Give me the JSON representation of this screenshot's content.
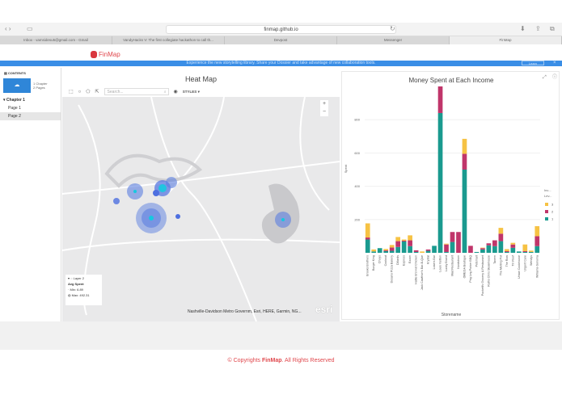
{
  "browser": {
    "url": "finmap.github.io",
    "tabs": [
      {
        "label": "Inbox - vamsidesu5@gmail.com - Gmail",
        "active": false
      },
      {
        "label": "VandyHacks V: The first collegiate hackathon to call th...",
        "active": false
      },
      {
        "label": "Devpost",
        "active": false
      },
      {
        "label": "Messenger",
        "active": false
      },
      {
        "label": "FinMap",
        "active": true
      }
    ]
  },
  "brand": {
    "name": "FinMap",
    "color": "#e0474c"
  },
  "banner": {
    "text": "Experience the new storytelling library. Share your Dossier and take advantage of new collaboration tools.",
    "button": "Learn"
  },
  "sidebar": {
    "header": "CONTENTS",
    "meta_chapters": "1 Chapter",
    "meta_pages": "2 Pages",
    "chapter": "Chapter 1",
    "pages": [
      {
        "label": "Page 1",
        "selected": false
      },
      {
        "label": "Page 2",
        "selected": true
      }
    ]
  },
  "map": {
    "title": "Heat Map",
    "search_placeholder": "Search...",
    "styles_label": "STYLES",
    "attribution": "Nashville-Davidson Metro Governm, Esri, HERE, Garmin, NG...",
    "esri": "esri",
    "legend": {
      "layer": "Layer 2",
      "field": "Avg Spent",
      "min": "Min: 6.89",
      "max": "Max: 492.31"
    }
  },
  "chart_data": {
    "type": "bar",
    "stacked": true,
    "title": "Money Spent at Each Income",
    "xlabel": "Storename",
    "ylabel": "Spent",
    "ylim": [
      0,
      1000
    ],
    "yticks": [
      200,
      400,
      600,
      800
    ],
    "grid": true,
    "legend": {
      "title_line1": "Inc...",
      "title_line2": "Lev...",
      "placement": "right"
    },
    "categories": [
      "Brooks Brothers",
      "Burger King",
      "Chuys",
      "Cookout",
      "Desano Pizza Bakery",
      "Dillards",
      "Express",
      "Exxon",
      "Hattie B's Hot Chicken",
      "Jack Cawthon's Bar-B-Que",
      "Krystal",
      "Losers Bar",
      "Louis Vuitton",
      "Lucky Brand",
      "Mad Restaurant",
      "Nordstrom",
      "OMEGA Boutique",
      "Peg Leg Porker BBQ",
      "Petsmart",
      "Puckett's Grocery & Restaurant",
      "Ruths Chris Steakhouse",
      "Tavern",
      "The Melting Pot",
      "The Row",
      "Tin Roof",
      "Urban Cookhouse",
      "Urgent Care",
      "Wendys",
      "Williams-Sonoma"
    ],
    "series": [
      {
        "name": "1",
        "color": "#1a9a8f",
        "values": [
          80,
          8,
          28,
          10,
          12,
          35,
          68,
          40,
          5,
          0,
          12,
          42,
          840,
          5,
          65,
          0,
          500,
          0,
          5,
          20,
          45,
          40,
          70,
          5,
          30,
          8,
          5,
          5,
          40
        ]
      },
      {
        "name": "2",
        "color": "#c0356a",
        "values": [
          12,
          0,
          0,
          5,
          20,
          35,
          5,
          35,
          10,
          0,
          8,
          0,
          160,
          45,
          60,
          125,
          95,
          42,
          0,
          8,
          12,
          35,
          45,
          5,
          20,
          0,
          5,
          0,
          60
        ]
      },
      {
        "name": "3",
        "color": "#f6c244",
        "values": [
          85,
          12,
          0,
          8,
          15,
          25,
          7,
          30,
          0,
          8,
          0,
          0,
          0,
          5,
          0,
          0,
          90,
          0,
          0,
          3,
          0,
          0,
          35,
          12,
          10,
          0,
          40,
          8,
          60
        ]
      }
    ]
  },
  "footer": {
    "prefix": "© Copyrights ",
    "brand": "FinMap",
    "suffix": ". All Rights Reserved"
  }
}
